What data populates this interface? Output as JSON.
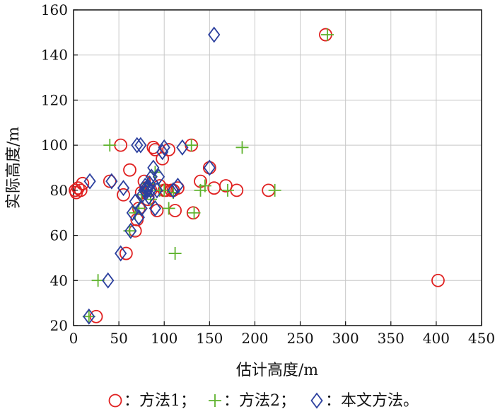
{
  "colors": {
    "method1": "#e02020",
    "method2": "#5fb32e",
    "method3": "#2b3f9e",
    "grid": "#c8c8c8",
    "axis": "#111111"
  },
  "chart_data": {
    "type": "scatter",
    "title": "",
    "xlabel": "估计高度/m",
    "ylabel": "实际高度/m",
    "xlim": [
      0,
      450
    ],
    "ylim": [
      20,
      160
    ],
    "xticks": [
      0,
      50,
      100,
      150,
      200,
      250,
      300,
      350,
      400,
      450
    ],
    "yticks": [
      20,
      40,
      60,
      80,
      100,
      120,
      140,
      160
    ],
    "grid": true,
    "legend_position": "bottom",
    "series": [
      {
        "name": "：方法1；",
        "marker": "circle",
        "color": "#e02020",
        "points": [
          [
            2,
            80
          ],
          [
            3,
            79
          ],
          [
            5,
            81
          ],
          [
            8,
            80
          ],
          [
            10,
            83
          ],
          [
            25,
            24
          ],
          [
            40,
            84
          ],
          [
            52,
            100
          ],
          [
            55,
            78
          ],
          [
            58,
            52
          ],
          [
            62,
            89
          ],
          [
            68,
            62
          ],
          [
            70,
            67
          ],
          [
            72,
            72
          ],
          [
            75,
            79
          ],
          [
            78,
            84
          ],
          [
            80,
            81
          ],
          [
            82,
            76
          ],
          [
            85,
            80
          ],
          [
            88,
            99
          ],
          [
            90,
            98
          ],
          [
            92,
            71
          ],
          [
            95,
            82
          ],
          [
            98,
            94
          ],
          [
            100,
            80
          ],
          [
            102,
            80
          ],
          [
            105,
            98
          ],
          [
            108,
            80
          ],
          [
            110,
            80
          ],
          [
            112,
            71
          ],
          [
            115,
            81
          ],
          [
            130,
            100
          ],
          [
            132,
            70
          ],
          [
            140,
            84
          ],
          [
            150,
            90
          ],
          [
            155,
            81
          ],
          [
            168,
            82
          ],
          [
            180,
            80
          ],
          [
            215,
            80
          ],
          [
            278,
            149
          ],
          [
            402,
            40
          ]
        ]
      },
      {
        "name": "：方法2；",
        "marker": "plus",
        "color": "#5fb32e",
        "points": [
          [
            17,
            24
          ],
          [
            27,
            40
          ],
          [
            40,
            100
          ],
          [
            62,
            62
          ],
          [
            68,
            70
          ],
          [
            72,
            72
          ],
          [
            75,
            78
          ],
          [
            78,
            80
          ],
          [
            82,
            83
          ],
          [
            85,
            76
          ],
          [
            90,
            88
          ],
          [
            95,
            80
          ],
          [
            100,
            80
          ],
          [
            105,
            72
          ],
          [
            110,
            79
          ],
          [
            112,
            52
          ],
          [
            130,
            100
          ],
          [
            133,
            70
          ],
          [
            140,
            80
          ],
          [
            145,
            82
          ],
          [
            170,
            80
          ],
          [
            186,
            99
          ],
          [
            222,
            80
          ],
          [
            280,
            149
          ]
        ]
      },
      {
        "name": "：本文方法。",
        "marker": "diamond",
        "color": "#2b3f9e",
        "points": [
          [
            17,
            24
          ],
          [
            18,
            84
          ],
          [
            38,
            40
          ],
          [
            42,
            84
          ],
          [
            52,
            52
          ],
          [
            55,
            81
          ],
          [
            63,
            62
          ],
          [
            65,
            70
          ],
          [
            68,
            75
          ],
          [
            70,
            100
          ],
          [
            72,
            68
          ],
          [
            74,
            100
          ],
          [
            75,
            72
          ],
          [
            76,
            78
          ],
          [
            78,
            80
          ],
          [
            79,
            82
          ],
          [
            80,
            79
          ],
          [
            81,
            80
          ],
          [
            82,
            81
          ],
          [
            83,
            77
          ],
          [
            84,
            83
          ],
          [
            85,
            80
          ],
          [
            86,
            86
          ],
          [
            88,
            90
          ],
          [
            90,
            72
          ],
          [
            92,
            80
          ],
          [
            94,
            86
          ],
          [
            98,
            97
          ],
          [
            100,
            99
          ],
          [
            110,
            80
          ],
          [
            115,
            82
          ],
          [
            120,
            99
          ],
          [
            150,
            90
          ],
          [
            155,
            149
          ]
        ]
      }
    ]
  }
}
